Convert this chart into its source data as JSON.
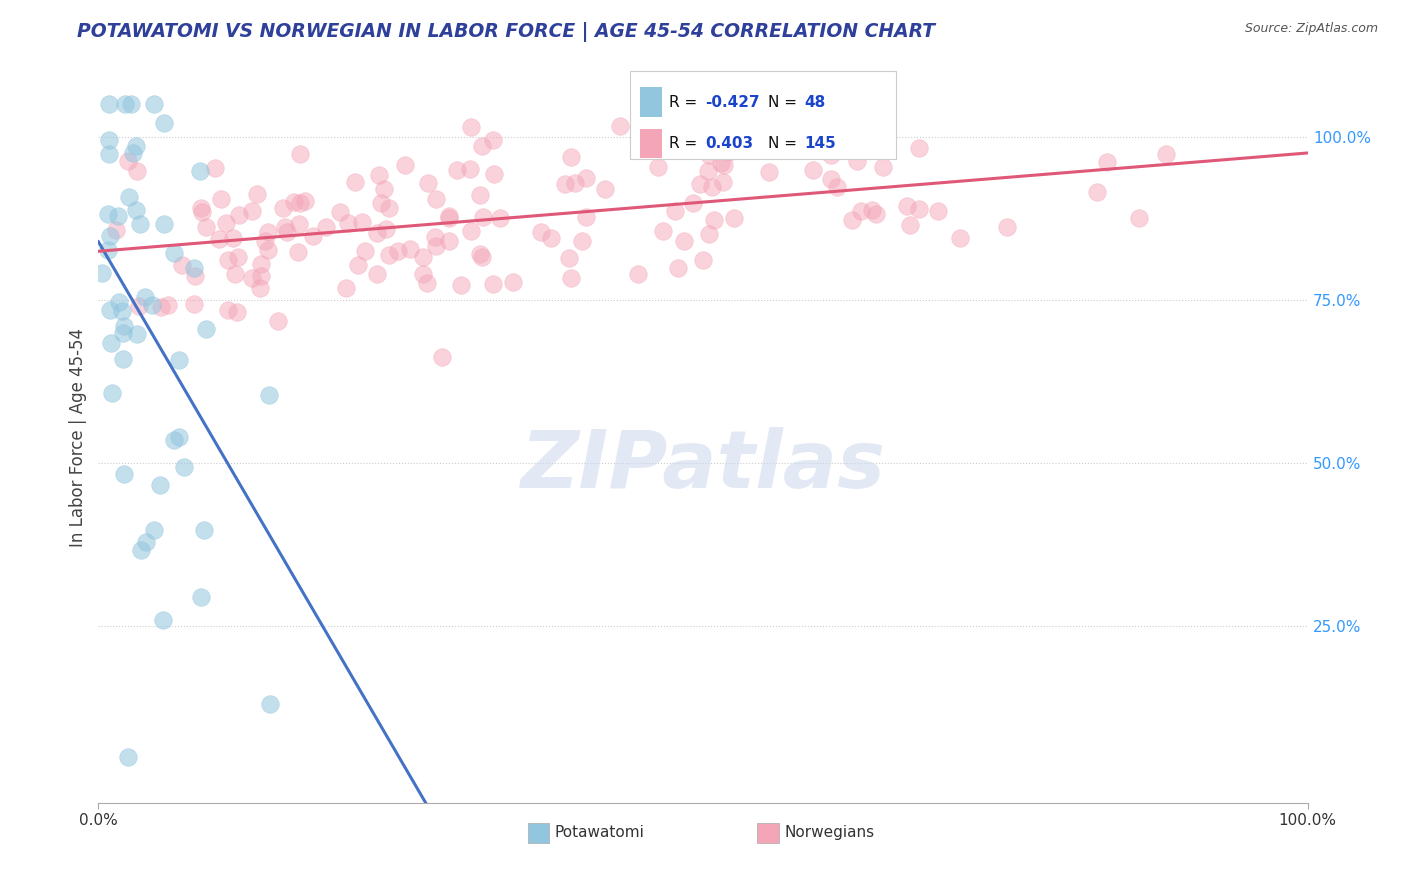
{
  "title": "POTAWATOMI VS NORWEGIAN IN LABOR FORCE | AGE 45-54 CORRELATION CHART",
  "source": "Source: ZipAtlas.com",
  "ylabel": "In Labor Force | Age 45-54",
  "potawatomi_R": -0.427,
  "potawatomi_N": 48,
  "norwegian_R": 0.403,
  "norwegian_N": 145,
  "potawatomi_color": "#92c5de",
  "norwegian_color": "#f4a6b8",
  "potawatomi_line_color": "#4472c4",
  "norwegian_line_color": "#e05878",
  "trend_extend_color": "#b0c4de",
  "watermark": "ZIPatlas",
  "bg_color": "#ffffff",
  "grid_color": "#cccccc",
  "title_color": "#2e4099",
  "ytick_values": [
    0.25,
    0.5,
    0.75,
    1.0
  ],
  "xlim": [
    0.0,
    1.0
  ],
  "ylim": [
    -0.02,
    1.1
  ]
}
